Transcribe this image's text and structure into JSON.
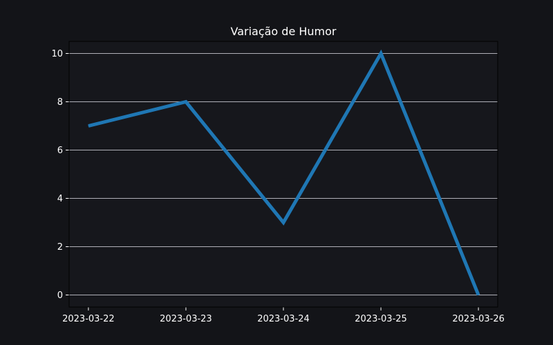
{
  "chart_data": {
    "type": "line",
    "title": "Variação de Humor",
    "xlabel": "",
    "ylabel": "",
    "categories": [
      "2023-03-22",
      "2023-03-23",
      "2023-03-24",
      "2023-03-25",
      "2023-03-26"
    ],
    "series": [
      {
        "values": [
          7,
          8,
          3,
          10,
          0
        ]
      }
    ],
    "ylim": [
      -0.5,
      10.5
    ],
    "yticks": [
      0,
      2,
      4,
      6,
      8,
      10
    ],
    "grid": "horizontal",
    "legend": "none",
    "colors": {
      "page_background": "#131418",
      "plot_background": "#16171c",
      "line": "#1f77b4",
      "grid": "#b0b0b8",
      "text": "#ffffff",
      "axis": "#000000"
    }
  }
}
